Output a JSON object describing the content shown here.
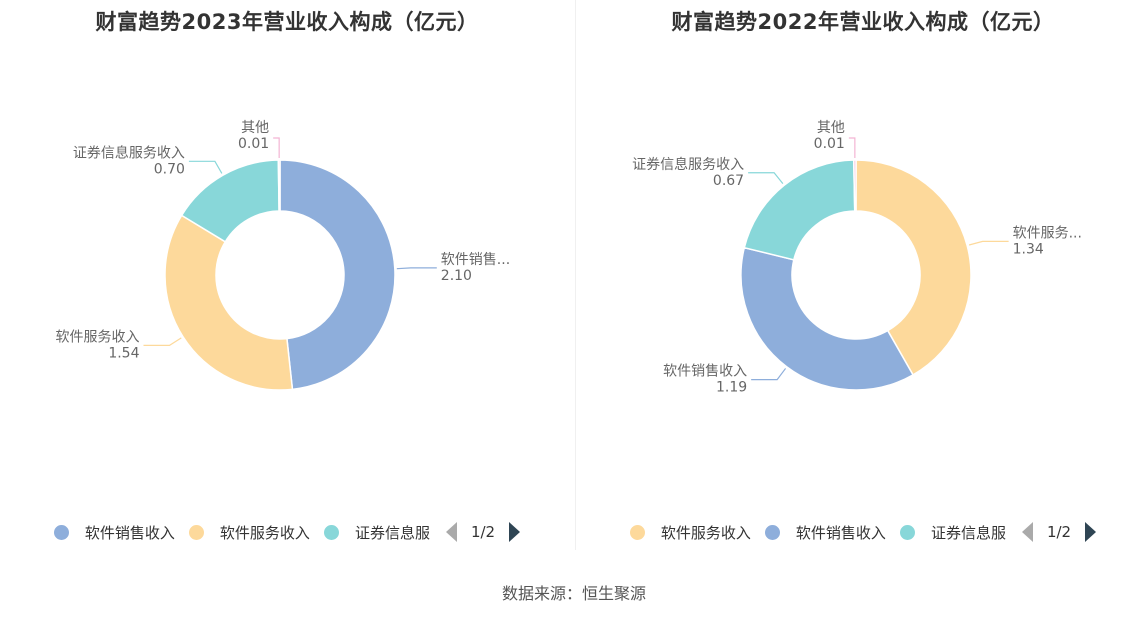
{
  "colors": {
    "软件销售收入": "#8eaedb",
    "软件服务收入": "#fdd99b",
    "证券信息服务收入": "#88d7d9",
    "其他": "#f3b5d4"
  },
  "chart_data": [
    {
      "type": "pie",
      "title": "财富趋势2023年营业收入构成（亿元）",
      "slices": [
        {
          "name": "软件销售收入",
          "value": 2.1,
          "label": "软件销售...",
          "value_label": "2.10"
        },
        {
          "name": "软件服务收入",
          "value": 1.54,
          "label": "软件服务收入",
          "value_label": "1.54"
        },
        {
          "name": "证券信息服务收入",
          "value": 0.7,
          "label": "证券信息服务收入",
          "value_label": "0.70"
        },
        {
          "name": "其他",
          "value": 0.01,
          "label": "其他",
          "value_label": "0.01"
        }
      ],
      "legend": {
        "position": "bottom",
        "items": [
          "软件销售收入",
          "软件服务收入",
          "证券信息服"
        ],
        "colors": [
          "#8eaedb",
          "#fdd99b",
          "#88d7d9"
        ],
        "page": "1/2"
      }
    },
    {
      "type": "pie",
      "title": "财富趋势2022年营业收入构成（亿元）",
      "slices": [
        {
          "name": "软件服务收入",
          "value": 1.34,
          "label": "软件服务...",
          "value_label": "1.34"
        },
        {
          "name": "软件销售收入",
          "value": 1.19,
          "label": "软件销售收入",
          "value_label": "1.19"
        },
        {
          "name": "证券信息服务收入",
          "value": 0.67,
          "label": "证券信息服务收入",
          "value_label": "0.67"
        },
        {
          "name": "其他",
          "value": 0.01,
          "label": "其他",
          "value_label": "0.01"
        }
      ],
      "legend": {
        "position": "bottom",
        "items": [
          "软件服务收入",
          "软件销售收入",
          "证券信息服"
        ],
        "colors": [
          "#fdd99b",
          "#8eaedb",
          "#88d7d9"
        ],
        "page": "1/2"
      }
    }
  ],
  "footer": {
    "source": "数据来源：恒生聚源"
  }
}
